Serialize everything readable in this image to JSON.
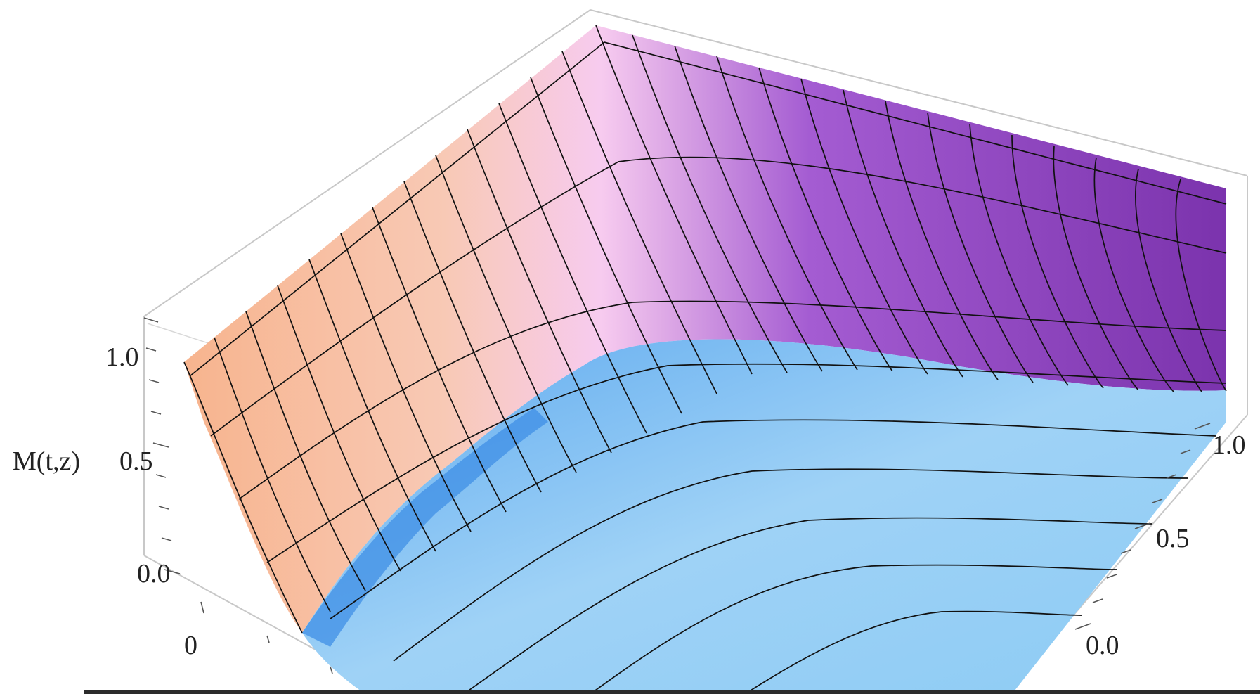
{
  "chart_data": {
    "type": "surface3d",
    "zlabel": "M(t,z)",
    "z_ticks": [
      "1.0",
      "0.5",
      "0.0"
    ],
    "x_ticks": [
      "0"
    ],
    "y_ticks": [
      "1.0",
      "0.5",
      "0.0"
    ],
    "zlim": [
      0.0,
      1.0
    ],
    "ylim": [
      0.0,
      1.0
    ],
    "colors": {
      "high_peach": "#f6b896",
      "pink": "#f5c6ee",
      "purple": "#8a3fb7",
      "blue": "#7fc4f2",
      "deep_blue": "#3d8fe8"
    },
    "surface_description_points": [
      {
        "x": 0.0,
        "y": 0.0,
        "z": 1.0
      },
      {
        "x": 0.15,
        "y": 0.0,
        "z": 0.0
      },
      {
        "x": 0.15,
        "y": 1.0,
        "z": 1.0
      },
      {
        "x": 1.0,
        "y": 1.0,
        "z": 1.0
      },
      {
        "x": 1.0,
        "y": 0.0,
        "z": 0.0
      }
    ]
  }
}
